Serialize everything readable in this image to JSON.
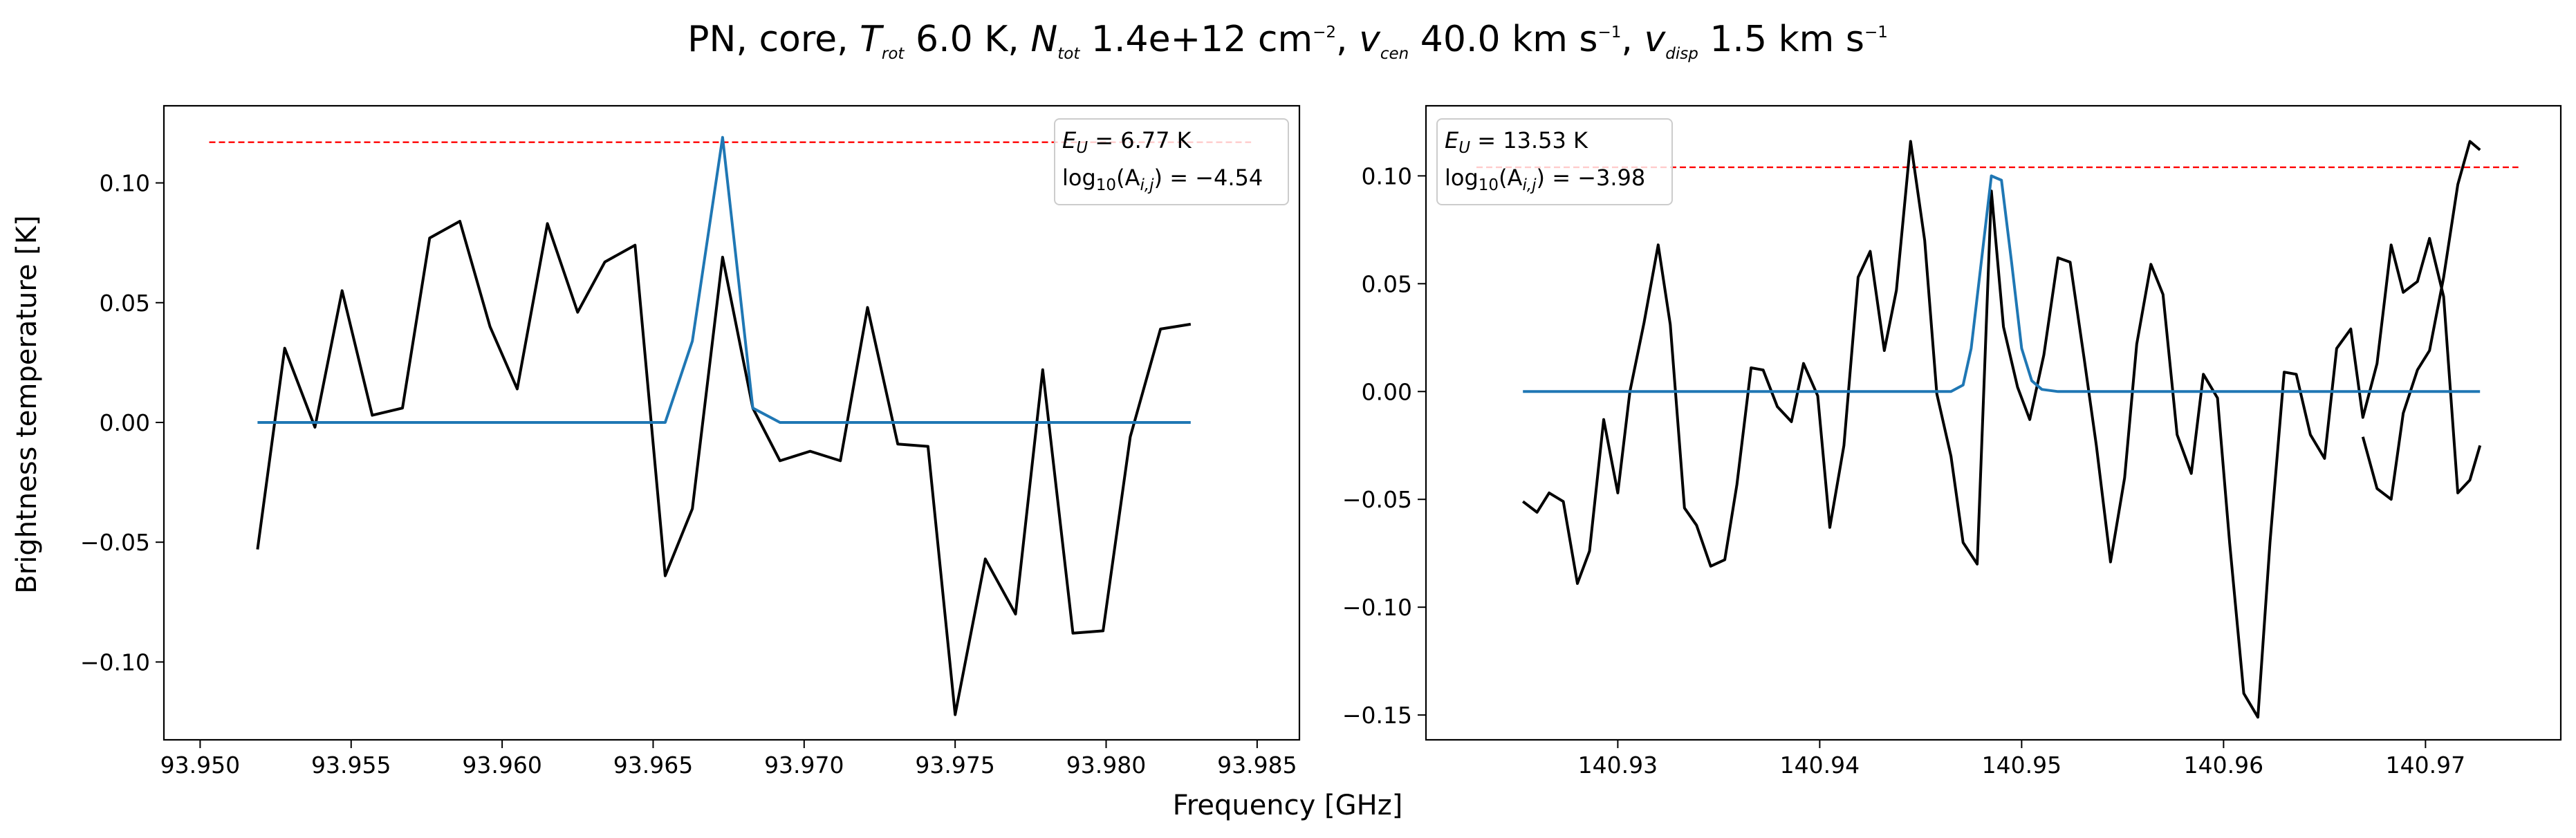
{
  "chart_data": {
    "suptitle": {
      "prefix": "PN, core, ",
      "t_sym": "T",
      "t_sub": "rot",
      "t_val": " 6.0 K, ",
      "n_sym": "N",
      "n_sub": "tot",
      "n_val": " 1.4e+12 cm",
      "n_exp": "−2",
      "n_end": ", ",
      "vc_sym": "v",
      "vc_sub": "cen",
      "vc_val": " 40.0 km s",
      "vc_exp": "−1",
      "vc_end": ", ",
      "vd_sym": "v",
      "vd_sub": "disp",
      "vd_val": " 1.5 km s",
      "vd_exp": "−1"
    },
    "xlabel": "Frequency [GHz]",
    "ylabel": "Brightness temperature [K]",
    "colors": {
      "observed": "#000000",
      "model": "#1f77b4",
      "threshold": "#ff0000",
      "axes": "#000000"
    },
    "panels": [
      {
        "type": "line",
        "xlim": [
          93.9488,
          93.9864
        ],
        "ylim": [
          -0.1325,
          0.1322
        ],
        "xticks": [
          93.95,
          93.955,
          93.96,
          93.965,
          93.97,
          93.975,
          93.98,
          93.985
        ],
        "xtick_labels": [
          "93.950",
          "93.955",
          "93.960",
          "93.965",
          "93.970",
          "93.975",
          "93.980",
          "93.985"
        ],
        "yticks": [
          -0.1,
          -0.05,
          0.0,
          0.05,
          0.1
        ],
        "ytick_labels": [
          "−0.10",
          "−0.05",
          "0.00",
          "0.05",
          "0.10"
        ],
        "legend": {
          "location": "top-right",
          "eu_sym": "E",
          "eu_sub": "U",
          "eu_val": " = 6.77 K",
          "log_pre": "log",
          "log_base": "10",
          "log_mid": "(A",
          "log_sub": "i,j",
          "log_val": ") = −4.54"
        },
        "threshold": {
          "x": [
            93.9503,
            93.9848
          ],
          "y": 0.117
        },
        "series": [
          {
            "name": "observed",
            "x": [
              93.9519,
              93.9528,
              93.9538,
              93.9547,
              93.9557,
              93.9567,
              93.9576,
              93.9586,
              93.9596,
              93.9605,
              93.9615,
              93.9625,
              93.9634,
              93.9644,
              93.9654,
              93.9663,
              93.9673,
              93.9683,
              93.9692,
              93.9702,
              93.9712,
              93.9721,
              93.9731,
              93.9741,
              93.975,
              93.976,
              93.977,
              93.9779,
              93.9789,
              93.9799,
              93.9808,
              93.9818,
              93.9828
            ],
            "y": [
              -0.053,
              0.031,
              -0.002,
              0.055,
              0.003,
              0.006,
              0.077,
              0.084,
              0.04,
              0.014,
              0.083,
              0.046,
              0.067,
              0.074,
              -0.064,
              -0.036,
              0.069,
              0.006,
              -0.016,
              -0.012,
              -0.016,
              0.048,
              -0.009,
              -0.01,
              -0.122,
              -0.057,
              -0.08,
              0.022,
              -0.088,
              -0.087,
              -0.006,
              0.039,
              0.041
            ]
          },
          {
            "name": "model",
            "x": [
              93.9519,
              93.9654,
              93.9663,
              93.9673,
              93.9683,
              93.9692,
              93.9828
            ],
            "y": [
              0.0,
              0.0,
              0.034,
              0.119,
              0.006,
              0.0,
              0.0
            ]
          }
        ]
      },
      {
        "type": "line",
        "xlim": [
          140.9205,
          140.9767
        ],
        "ylim": [
          -0.1615,
          0.1325
        ],
        "xticks": [
          140.93,
          140.94,
          140.95,
          140.96,
          140.97
        ],
        "xtick_labels": [
          "140.93",
          "140.94",
          "140.95",
          "140.96",
          "140.97"
        ],
        "yticks": [
          -0.15,
          -0.1,
          -0.05,
          0.0,
          0.05,
          0.1
        ],
        "ytick_labels": [
          "−0.15",
          "−0.10",
          "−0.05",
          "0.00",
          "0.05",
          "0.10"
        ],
        "legend": {
          "location": "top-left",
          "eu_sym": "E",
          "eu_sub": "U",
          "eu_val": " = 13.53 K",
          "log_pre": "log",
          "log_base": "10",
          "log_mid": "(A",
          "log_sub": "i,j",
          "log_val": ") = −3.98"
        },
        "threshold": {
          "x": [
            140.923,
            140.9746
          ],
          "y": 0.104
        },
        "series": [
          {
            "name": "observed",
            "x": [
              140.9253,
              140.926,
              140.9266,
              140.9273,
              140.928,
              140.9286,
              140.9293,
              140.93,
              140.9306,
              140.9313,
              140.932,
              140.9326,
              140.9333,
              140.9339,
              140.9346,
              140.9353,
              140.9359,
              140.9366,
              140.9372,
              140.9379,
              140.9386,
              140.9392,
              140.9399,
              140.9405,
              140.9412,
              140.9419,
              140.9425,
              140.9432,
              140.9438,
              140.9445,
              140.9452,
              140.9458,
              140.9465,
              140.9471,
              140.9478,
              140.9485,
              140.9491,
              140.9498,
              140.9504,
              140.9511,
              140.9518,
              140.9524,
              140.9531,
              140.9537,
              140.9544,
              140.9551,
              140.9557,
              140.9564,
              140.957,
              140.9577,
              140.9584,
              140.959,
              140.9597,
              140.9603,
              140.961,
              140.9617,
              140.9623,
              140.963,
              140.9636,
              140.9643,
              140.965,
              140.9656,
              140.9663,
              140.9669,
              140.9676,
              140.9683,
              140.9689,
              140.9696,
              140.9702,
              140.9709,
              140.9716,
              140.9722,
              140.9727
            ],
            "y": [
              -0.051,
              -0.056,
              -0.047,
              -0.051,
              -0.089,
              -0.074,
              -0.013,
              -0.047,
              0.0,
              0.032,
              0.068,
              0.031,
              -0.054,
              -0.062,
              -0.081,
              -0.078,
              -0.043,
              0.011,
              0.01,
              -0.007,
              -0.014,
              0.013,
              -0.002,
              -0.063,
              -0.025,
              0.053,
              0.065,
              0.019,
              0.047,
              0.116,
              0.07,
              -0.001,
              -0.03,
              -0.07,
              -0.08,
              0.093,
              0.03,
              0.002,
              -0.013,
              0.017,
              0.062,
              0.06,
              0.015,
              -0.025,
              -0.079,
              -0.04,
              0.022,
              0.059,
              0.045,
              -0.02,
              -0.038,
              0.008,
              -0.003,
              -0.07,
              -0.14,
              -0.151,
              -0.07,
              0.009,
              0.008,
              -0.02,
              -0.031,
              0.02,
              0.029,
              -0.012,
              0.013,
              0.068,
              0.046,
              0.051,
              0.071,
              0.044,
              -0.047,
              -0.041,
              -0.025
            ]
          },
          {
            "name": "observed_tail",
            "x": [
              140.9669,
              140.9676,
              140.9683,
              140.9689,
              140.9696,
              140.9702,
              140.9709,
              140.9716,
              140.9722,
              140.9727
            ],
            "y": [
              -0.021,
              -0.045,
              -0.05,
              -0.01,
              0.01,
              0.019,
              0.053,
              0.096,
              0.116,
              0.112
            ]
          },
          {
            "name": "model",
            "x": [
              140.9253,
              140.9465,
              140.9471,
              140.9475,
              140.948,
              140.9485,
              140.949,
              140.9495,
              140.95,
              140.9505,
              140.951,
              140.9518,
              140.9727
            ],
            "y": [
              0.0,
              0.0,
              0.003,
              0.02,
              0.06,
              0.1,
              0.098,
              0.06,
              0.02,
              0.005,
              0.001,
              0.0,
              0.0
            ]
          }
        ]
      }
    ]
  }
}
